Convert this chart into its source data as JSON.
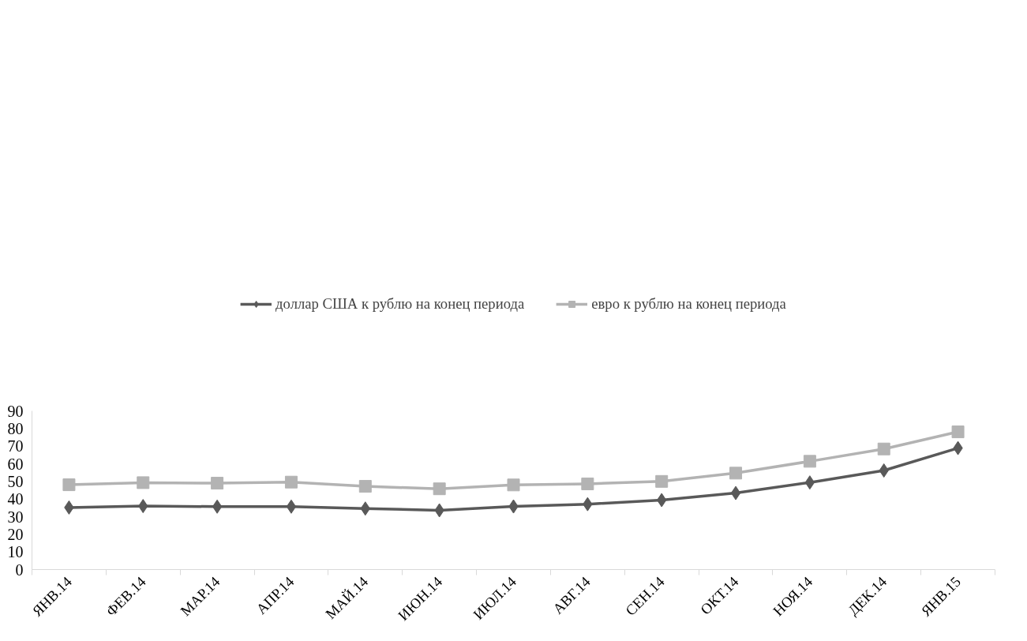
{
  "chart_data": {
    "type": "line",
    "categories": [
      "ЯНВ.14",
      "ФЕВ.14",
      "МАР.14",
      "АПР.14",
      "МАЙ.14",
      "ИЮН.14",
      "ИЮЛ.14",
      "АВГ.14",
      "СЕН.14",
      "ОКТ.14",
      "НОЯ.14",
      "ДЕК.14",
      "ЯНВ.15"
    ],
    "series": [
      {
        "name": "доллар США к рублю на конец периода",
        "color": "#595959",
        "marker": "diamond",
        "values": [
          35.2,
          36.0,
          35.7,
          35.7,
          34.6,
          33.6,
          35.8,
          37.1,
          39.4,
          43.4,
          49.4,
          56.2,
          68.9
        ]
      },
      {
        "name": "евро к рублю на конец периода",
        "color": "#b3b3b3",
        "marker": "square",
        "values": [
          48.1,
          49.3,
          49.0,
          49.6,
          47.2,
          45.8,
          48.0,
          48.6,
          50.0,
          54.7,
          61.4,
          68.4,
          78.1
        ]
      }
    ],
    "ylim": [
      0,
      90
    ],
    "yticks": [
      0,
      10,
      20,
      30,
      40,
      50,
      60,
      70,
      80,
      90
    ],
    "grid": false,
    "legend": "top",
    "line_style": "solid"
  }
}
